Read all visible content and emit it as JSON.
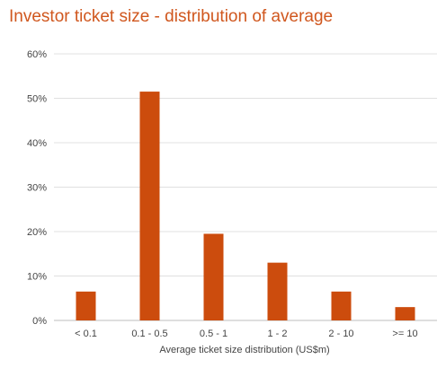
{
  "chart_data": {
    "type": "bar",
    "title": "Investor ticket size - distribution of average",
    "xlabel": "Average ticket size distribution (US$m)",
    "ylabel": "",
    "categories": [
      "< 0.1",
      "0.1 - 0.5",
      "0.5 - 1",
      "1 - 2",
      "2 - 10",
      ">= 10"
    ],
    "values": [
      6.5,
      51.5,
      19.5,
      13,
      6.5,
      3
    ],
    "ylim": [
      0,
      60
    ],
    "yticks": [
      "0%",
      "10%",
      "20%",
      "30%",
      "40%",
      "50%",
      "60%"
    ],
    "grid": true,
    "legend": "none",
    "bar_color": "#cc4c0d",
    "title_color": "#d0571e"
  }
}
